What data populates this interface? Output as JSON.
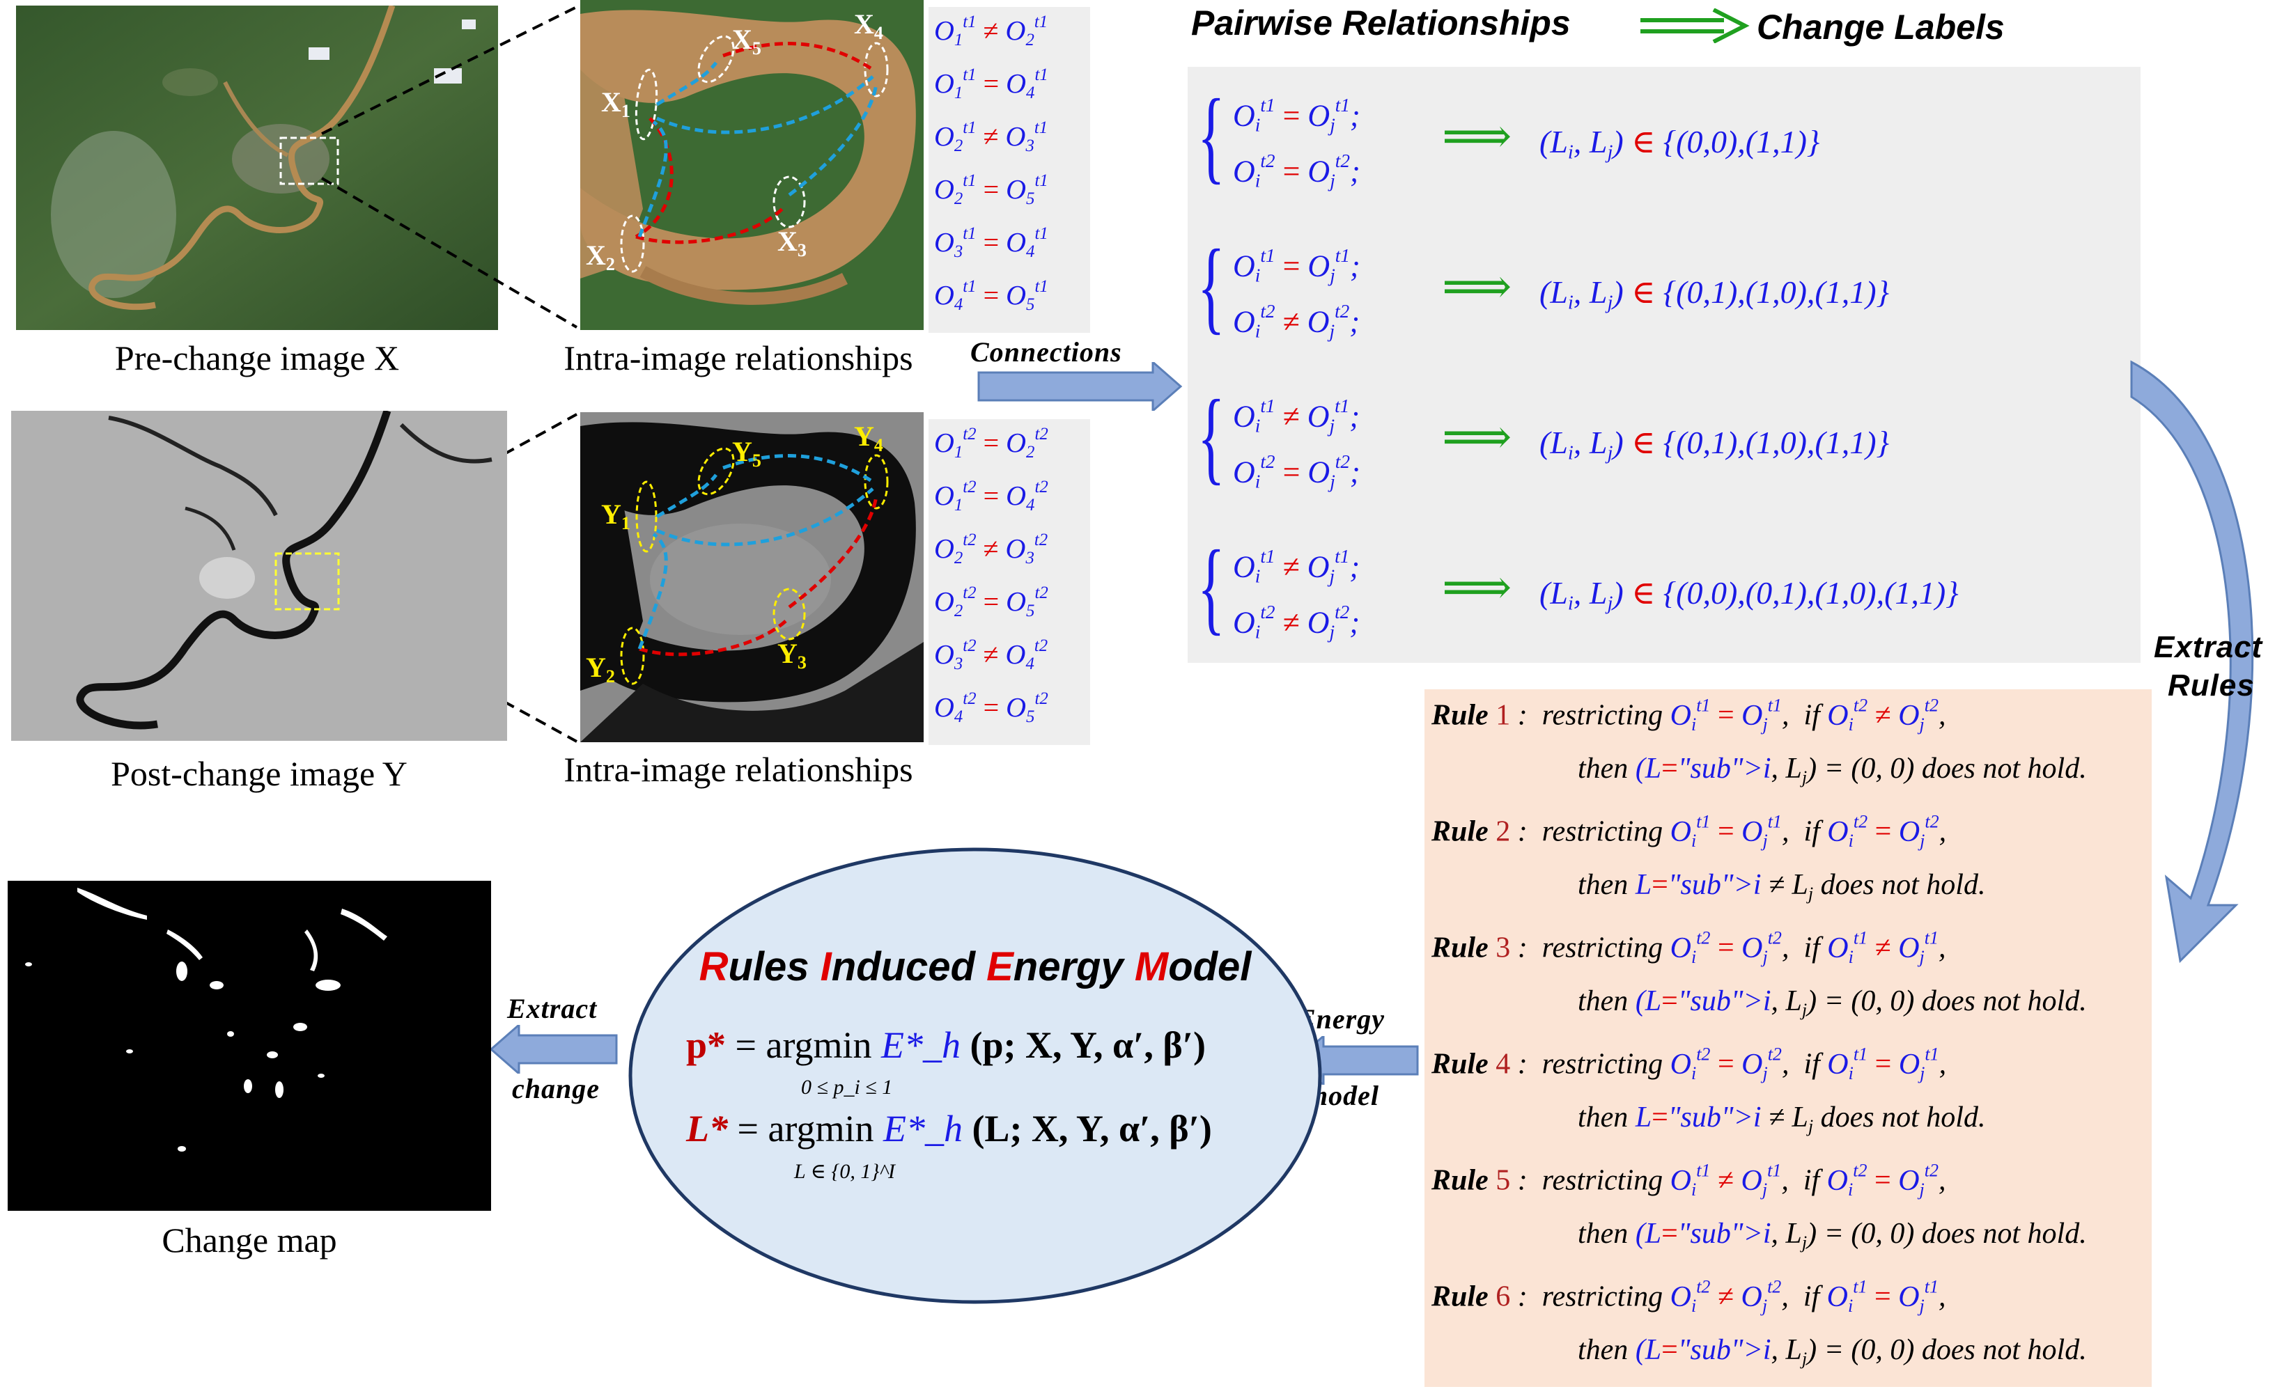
{
  "captions": {
    "pre_change": "Pre-change image X",
    "post_change": "Post-change image Y",
    "intra_top": "Intra-image relationships",
    "intra_bottom": "Intra-image relationships",
    "change_map": "Change map"
  },
  "region_labels": {
    "x": [
      "X1",
      "X2",
      "X3",
      "X4",
      "X5"
    ],
    "y": [
      "Y1",
      "Y2",
      "Y3",
      "Y4",
      "Y5"
    ]
  },
  "relations_t1": [
    {
      "a": "O1",
      "op": "≠",
      "b": "O2",
      "t": "t1"
    },
    {
      "a": "O1",
      "op": "=",
      "b": "O4",
      "t": "t1"
    },
    {
      "a": "O2",
      "op": "≠",
      "b": "O3",
      "t": "t1"
    },
    {
      "a": "O2",
      "op": "=",
      "b": "O5",
      "t": "t1"
    },
    {
      "a": "O3",
      "op": "=",
      "b": "O4",
      "t": "t1"
    },
    {
      "a": "O4",
      "op": "=",
      "b": "O5",
      "t": "t1"
    }
  ],
  "relations_t2": [
    {
      "a": "O1",
      "op": "=",
      "b": "O2",
      "t": "t2"
    },
    {
      "a": "O1",
      "op": "=",
      "b": "O4",
      "t": "t2"
    },
    {
      "a": "O2",
      "op": "≠",
      "b": "O3",
      "t": "t2"
    },
    {
      "a": "O2",
      "op": "=",
      "b": "O5",
      "t": "t2"
    },
    {
      "a": "O3",
      "op": "≠",
      "b": "O4",
      "t": "t2"
    },
    {
      "a": "O4",
      "op": "=",
      "b": "O5",
      "t": "t2"
    }
  ],
  "headings": {
    "pairwise": "Pairwise Relationships",
    "change_labels": "Change Labels",
    "connections": "Connections",
    "extract_rules_1": "Extract",
    "extract_rules_2": "Rules",
    "energy_1": "Energy",
    "energy_2": "model",
    "extract_change_1": "Extract",
    "extract_change_2": "change"
  },
  "cases": [
    {
      "op1": "=",
      "op2": "=",
      "result": "(L_i, L_j) ∈ {(0,0),(1,1)}"
    },
    {
      "op1": "=",
      "op2": "≠",
      "result": "(L_i, L_j) ∈ {(0,1),(1,0),(1,1)}"
    },
    {
      "op1": "≠",
      "op2": "=",
      "result": "(L_i, L_j) ∈ {(0,1),(1,0),(1,1)}"
    },
    {
      "op1": "≠",
      "op2": "≠",
      "result": "(L_i, L_j) ∈ {(0,0),(0,1),(1,0),(1,1)}"
    }
  ],
  "rules": [
    {
      "n": "1",
      "restrict": "t1",
      "rop": "=",
      "cond": "t2",
      "cop": "≠",
      "then": "(L_i, L_j) = (0, 0)",
      "tail": "does not hold."
    },
    {
      "n": "2",
      "restrict": "t1",
      "rop": "=",
      "cond": "t2",
      "cop": "=",
      "then": "L_i ≠ L_j",
      "tail": "does not hold."
    },
    {
      "n": "3",
      "restrict": "t2",
      "rop": "=",
      "cond": "t1",
      "cop": "≠",
      "then": "(L_i, L_j) = (0, 0)",
      "tail": "does not hold."
    },
    {
      "n": "4",
      "restrict": "t2",
      "rop": "=",
      "cond": "t1",
      "cop": "=",
      "then": "L_i ≠ L_j",
      "tail": "does not hold."
    },
    {
      "n": "5",
      "restrict": "t1",
      "rop": "≠",
      "cond": "t2",
      "cop": "=",
      "then": "(L_i, L_j) = (0, 0)",
      "tail": "does not hold."
    },
    {
      "n": "6",
      "restrict": "t2",
      "rop": "≠",
      "cond": "t1",
      "cop": "=",
      "then": "(L_i, L_j) = (0, 0)",
      "tail": "does not hold."
    }
  ],
  "rule_words": {
    "rule": "Rule",
    "restricting": "restricting",
    "if": "if",
    "then": "then"
  },
  "model": {
    "title_letters": [
      "R",
      "ules ",
      "I",
      "nduced ",
      "E",
      "nergy ",
      "M",
      "odel"
    ],
    "eq1_lhs": "p*",
    "eq1_rhs": "(p; X, Y, α′, β′)",
    "eq1_sub": "0 ≤ p_i ≤ 1",
    "eq2_lhs": "L*",
    "eq2_rhs": "(L; X, Y, α′, β′)",
    "eq2_sub": "L ∈ {0, 1}^I",
    "argmin": "argmin",
    "energy": "E*_h"
  },
  "colors": {
    "blue": "#1a1ae6",
    "red": "#e00000",
    "green": "#1fa01f",
    "rule_bg": "#fbe4d5",
    "gray_bg": "#eeeeee",
    "ellipse_bg": "#dce8f5",
    "arrow_fill": "#8eaadb"
  }
}
